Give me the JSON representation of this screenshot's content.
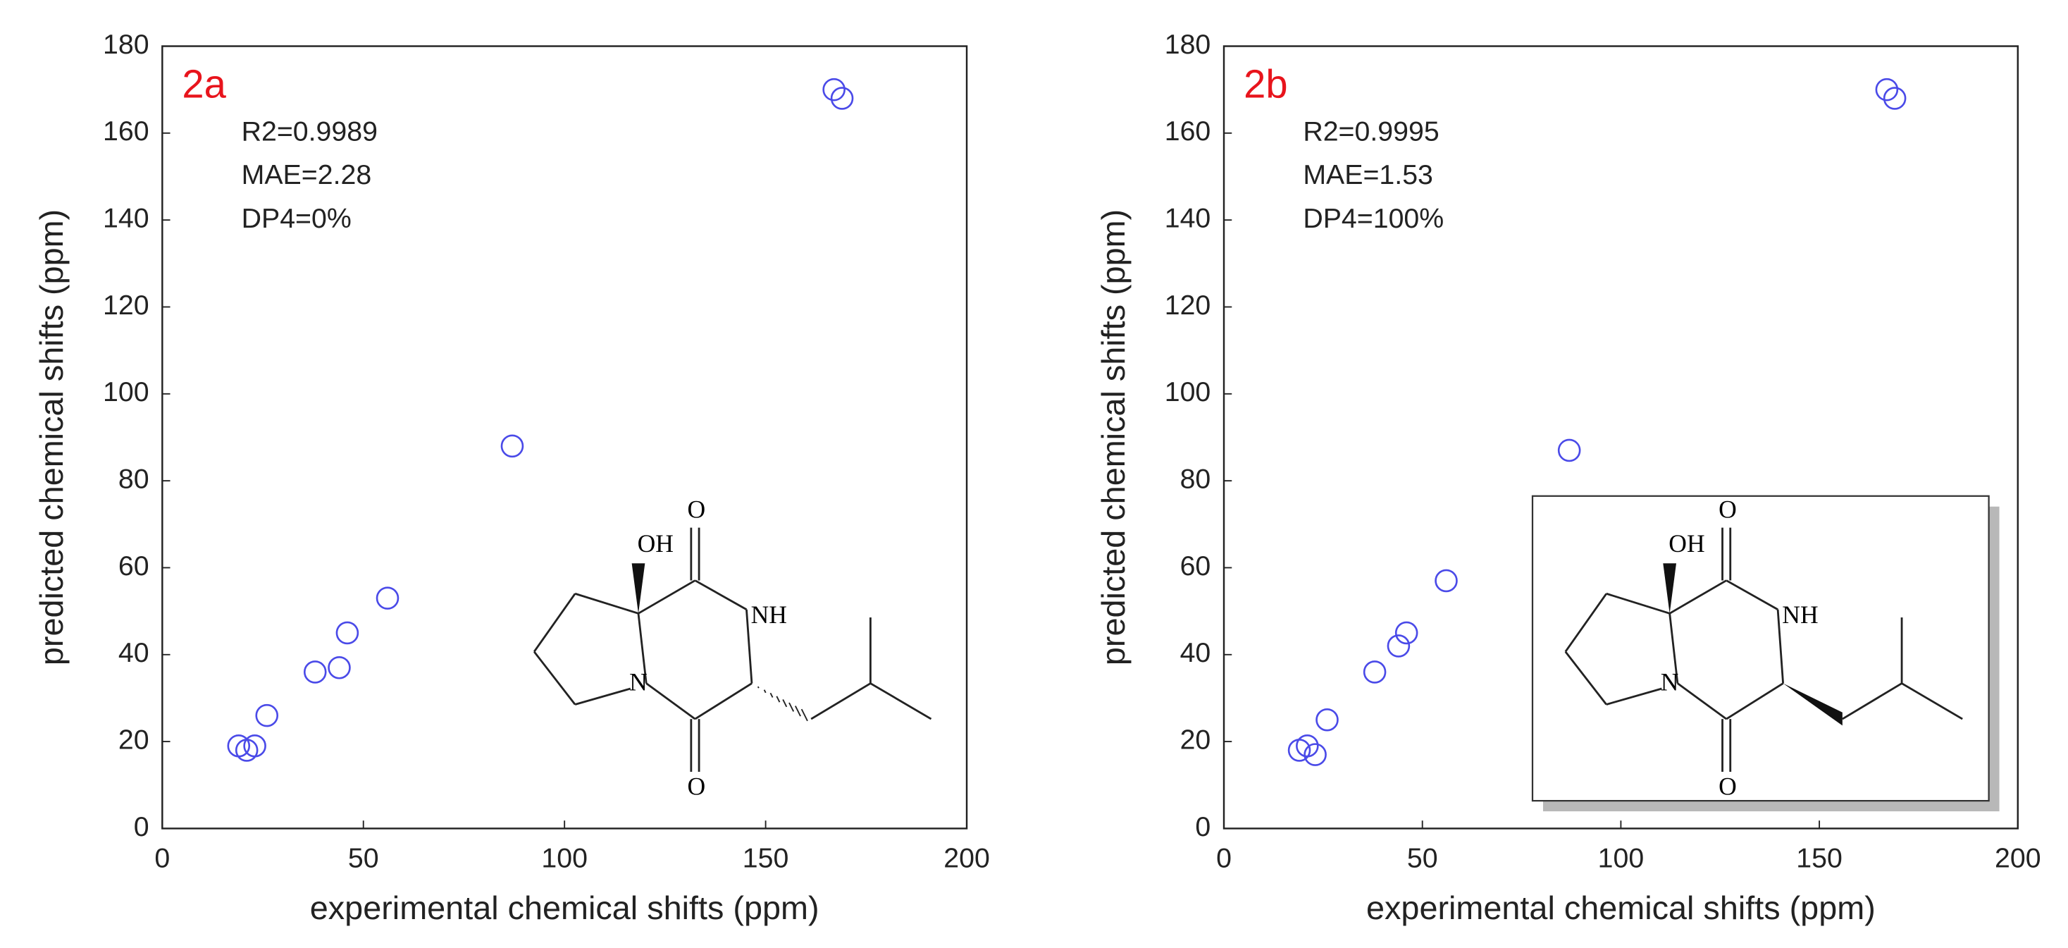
{
  "chart_data": [
    {
      "type": "scatter",
      "title": "2a",
      "annotations": [
        "R2=0.9989",
        "MAE=2.28",
        "DP4=0%"
      ],
      "xlabel": "experimental chemical shifts (ppm)",
      "ylabel": "predicted chemical shifts (ppm)",
      "x": [
        19,
        21,
        23,
        26,
        38,
        44,
        46,
        56,
        87,
        167,
        169
      ],
      "values": [
        19,
        18,
        19,
        26,
        36,
        37,
        45,
        53,
        88,
        170,
        168
      ],
      "color": "#4a4ae8",
      "xlim": [
        0,
        200
      ],
      "ylim": [
        0,
        180
      ],
      "xticks": [
        0,
        50,
        100,
        150,
        200
      ],
      "yticks": [
        0,
        20,
        40,
        60,
        80,
        100,
        120,
        140,
        160,
        180
      ],
      "structure_labels": [
        "OH",
        "O",
        "NH",
        "N",
        "O"
      ]
    },
    {
      "type": "scatter",
      "title": "2b",
      "annotations": [
        "R2=0.9995",
        "MAE=1.53",
        "DP4=100%"
      ],
      "xlabel": "experimental chemical shifts (ppm)",
      "ylabel": "predicted chemical shifts (ppm)",
      "x": [
        19,
        21,
        23,
        26,
        38,
        44,
        46,
        56,
        87,
        167,
        169
      ],
      "values": [
        18,
        19,
        17,
        25,
        36,
        42,
        45,
        57,
        87,
        170,
        168
      ],
      "color": "#4a4ae8",
      "xlim": [
        0,
        200
      ],
      "ylim": [
        0,
        180
      ],
      "xticks": [
        0,
        50,
        100,
        150,
        200
      ],
      "yticks": [
        0,
        20,
        40,
        60,
        80,
        100,
        120,
        140,
        160,
        180
      ],
      "structure_labels": [
        "OH",
        "O",
        "NH",
        "N",
        "O"
      ]
    }
  ]
}
